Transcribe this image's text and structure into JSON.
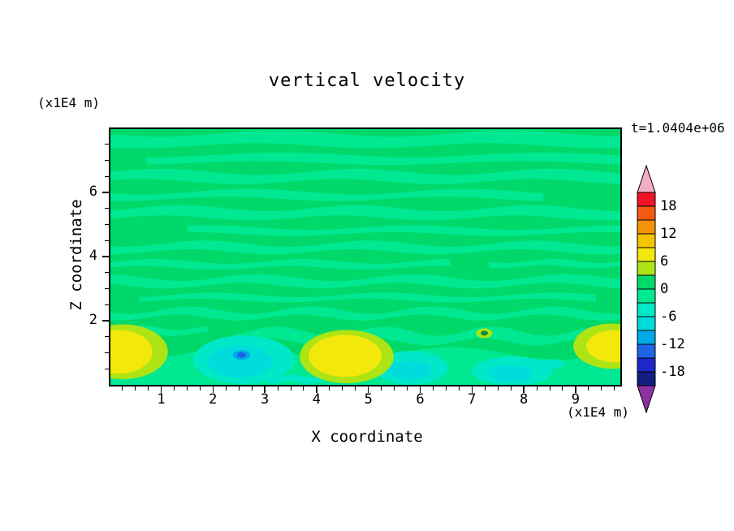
{
  "title": "vertical velocity",
  "time_label": "t=1.0404e+06",
  "x_axis": {
    "label": "X coordinate",
    "unit": "(x1E4 m)",
    "tick_labels": [
      "1",
      "2",
      "3",
      "4",
      "5",
      "6",
      "7",
      "8",
      "9"
    ]
  },
  "y_axis": {
    "label": "Z coordinate",
    "unit": "(x1E4 m)",
    "tick_labels": [
      "2",
      "4",
      "6"
    ]
  },
  "colorbar": {
    "tick_labels": [
      "18",
      "12",
      "6",
      "0",
      "-6",
      "-12",
      "-18"
    ],
    "segment_colors": [
      "#F01428",
      "#F55A14",
      "#F5930A",
      "#F5C400",
      "#F2E80C",
      "#AEE414",
      "#00D96A",
      "#00E891",
      "#00E8C8",
      "#00DCDC",
      "#00AAE8",
      "#1E64E6",
      "#1E28C8",
      "#141E82"
    ],
    "arrow_top_color": "#F2AEC2",
    "arrow_bottom_color": "#8C32A0"
  },
  "palette": {
    "pos_band": "#00D96A",
    "neg_band": "#00E891",
    "yellow": "#F2E80C",
    "yellow_green": "#AEE414",
    "cyan_green": "#00E8C8",
    "cyan": "#00DCDC",
    "sky": "#00AAE8",
    "blue": "#1E64E6",
    "dark_spot": "#0A8C46"
  },
  "chart_data": {
    "type": "heatmap",
    "variant": "filled-contour",
    "title": "vertical velocity",
    "time_annotation": "t=1.0404e+06",
    "xlabel": "X coordinate",
    "x_unit": "x1E4 m",
    "ylabel": "Z coordinate",
    "y_unit": "x1E4 m",
    "xlim": [
      0,
      9.9
    ],
    "ylim": [
      0,
      8.0
    ],
    "x_ticks": [
      1,
      2,
      3,
      4,
      5,
      6,
      7,
      8,
      9
    ],
    "y_ticks": [
      2,
      4,
      6
    ],
    "contour_interval": 3,
    "contour_levels": [
      -21,
      -18,
      -15,
      -12,
      -9,
      -6,
      -3,
      0,
      3,
      6,
      9,
      12,
      15,
      18,
      21
    ],
    "colorbar_labels": [
      18,
      12,
      6,
      0,
      -6,
      -12,
      -18
    ],
    "legend_position": "right",
    "grid": false,
    "field_summary": "Near-zero vertical velocity (alternating -3..0 and 0..+3 green wave bands in horizontal layers) above z=2; stronger convective updraft/downdraft cells below z=2",
    "features": [
      {
        "kind": "updraft",
        "x": 0.3,
        "z": 1.0,
        "peak_value": 9
      },
      {
        "kind": "downdraft",
        "x": 2.5,
        "z": 0.9,
        "peak_value": -9
      },
      {
        "kind": "downdraft_core",
        "x": 2.8,
        "z": 1.0,
        "peak_value": -13
      },
      {
        "kind": "updraft",
        "x": 4.5,
        "z": 0.9,
        "peak_value": 9
      },
      {
        "kind": "downdraft",
        "x": 5.9,
        "z": 0.5,
        "peak_value": -8
      },
      {
        "kind": "small_cell",
        "x": 6.1,
        "z": 1.7,
        "peak_value": 6
      },
      {
        "kind": "downdraft",
        "x": 7.7,
        "z": 0.4,
        "peak_value": -8
      },
      {
        "kind": "updraft",
        "x": 9.5,
        "z": 1.0,
        "peak_value": 9
      }
    ]
  }
}
